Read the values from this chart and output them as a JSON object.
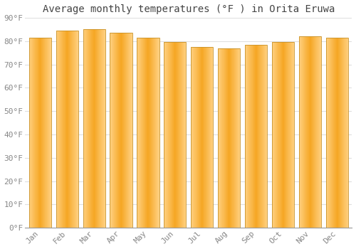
{
  "title": "Average monthly temperatures (°F ) in Orita Eruwa",
  "months": [
    "Jan",
    "Feb",
    "Mar",
    "Apr",
    "May",
    "Jun",
    "Jul",
    "Aug",
    "Sep",
    "Oct",
    "Nov",
    "Dec"
  ],
  "values": [
    81.5,
    84.5,
    85.0,
    83.5,
    81.5,
    79.5,
    77.5,
    77.0,
    78.5,
    79.5,
    82.0,
    81.5
  ],
  "ylim": [
    0,
    90
  ],
  "yticks": [
    0,
    10,
    20,
    30,
    40,
    50,
    60,
    70,
    80,
    90
  ],
  "bar_color_center": "#F5A623",
  "bar_color_edge": "#FFD080",
  "bar_border_color": "#C8922A",
  "background_color": "#FFFFFF",
  "plot_bg_color": "#FFFFFF",
  "grid_color": "#E0E0E0",
  "title_fontsize": 10,
  "tick_fontsize": 8,
  "title_color": "#444444",
  "tick_color": "#888888"
}
